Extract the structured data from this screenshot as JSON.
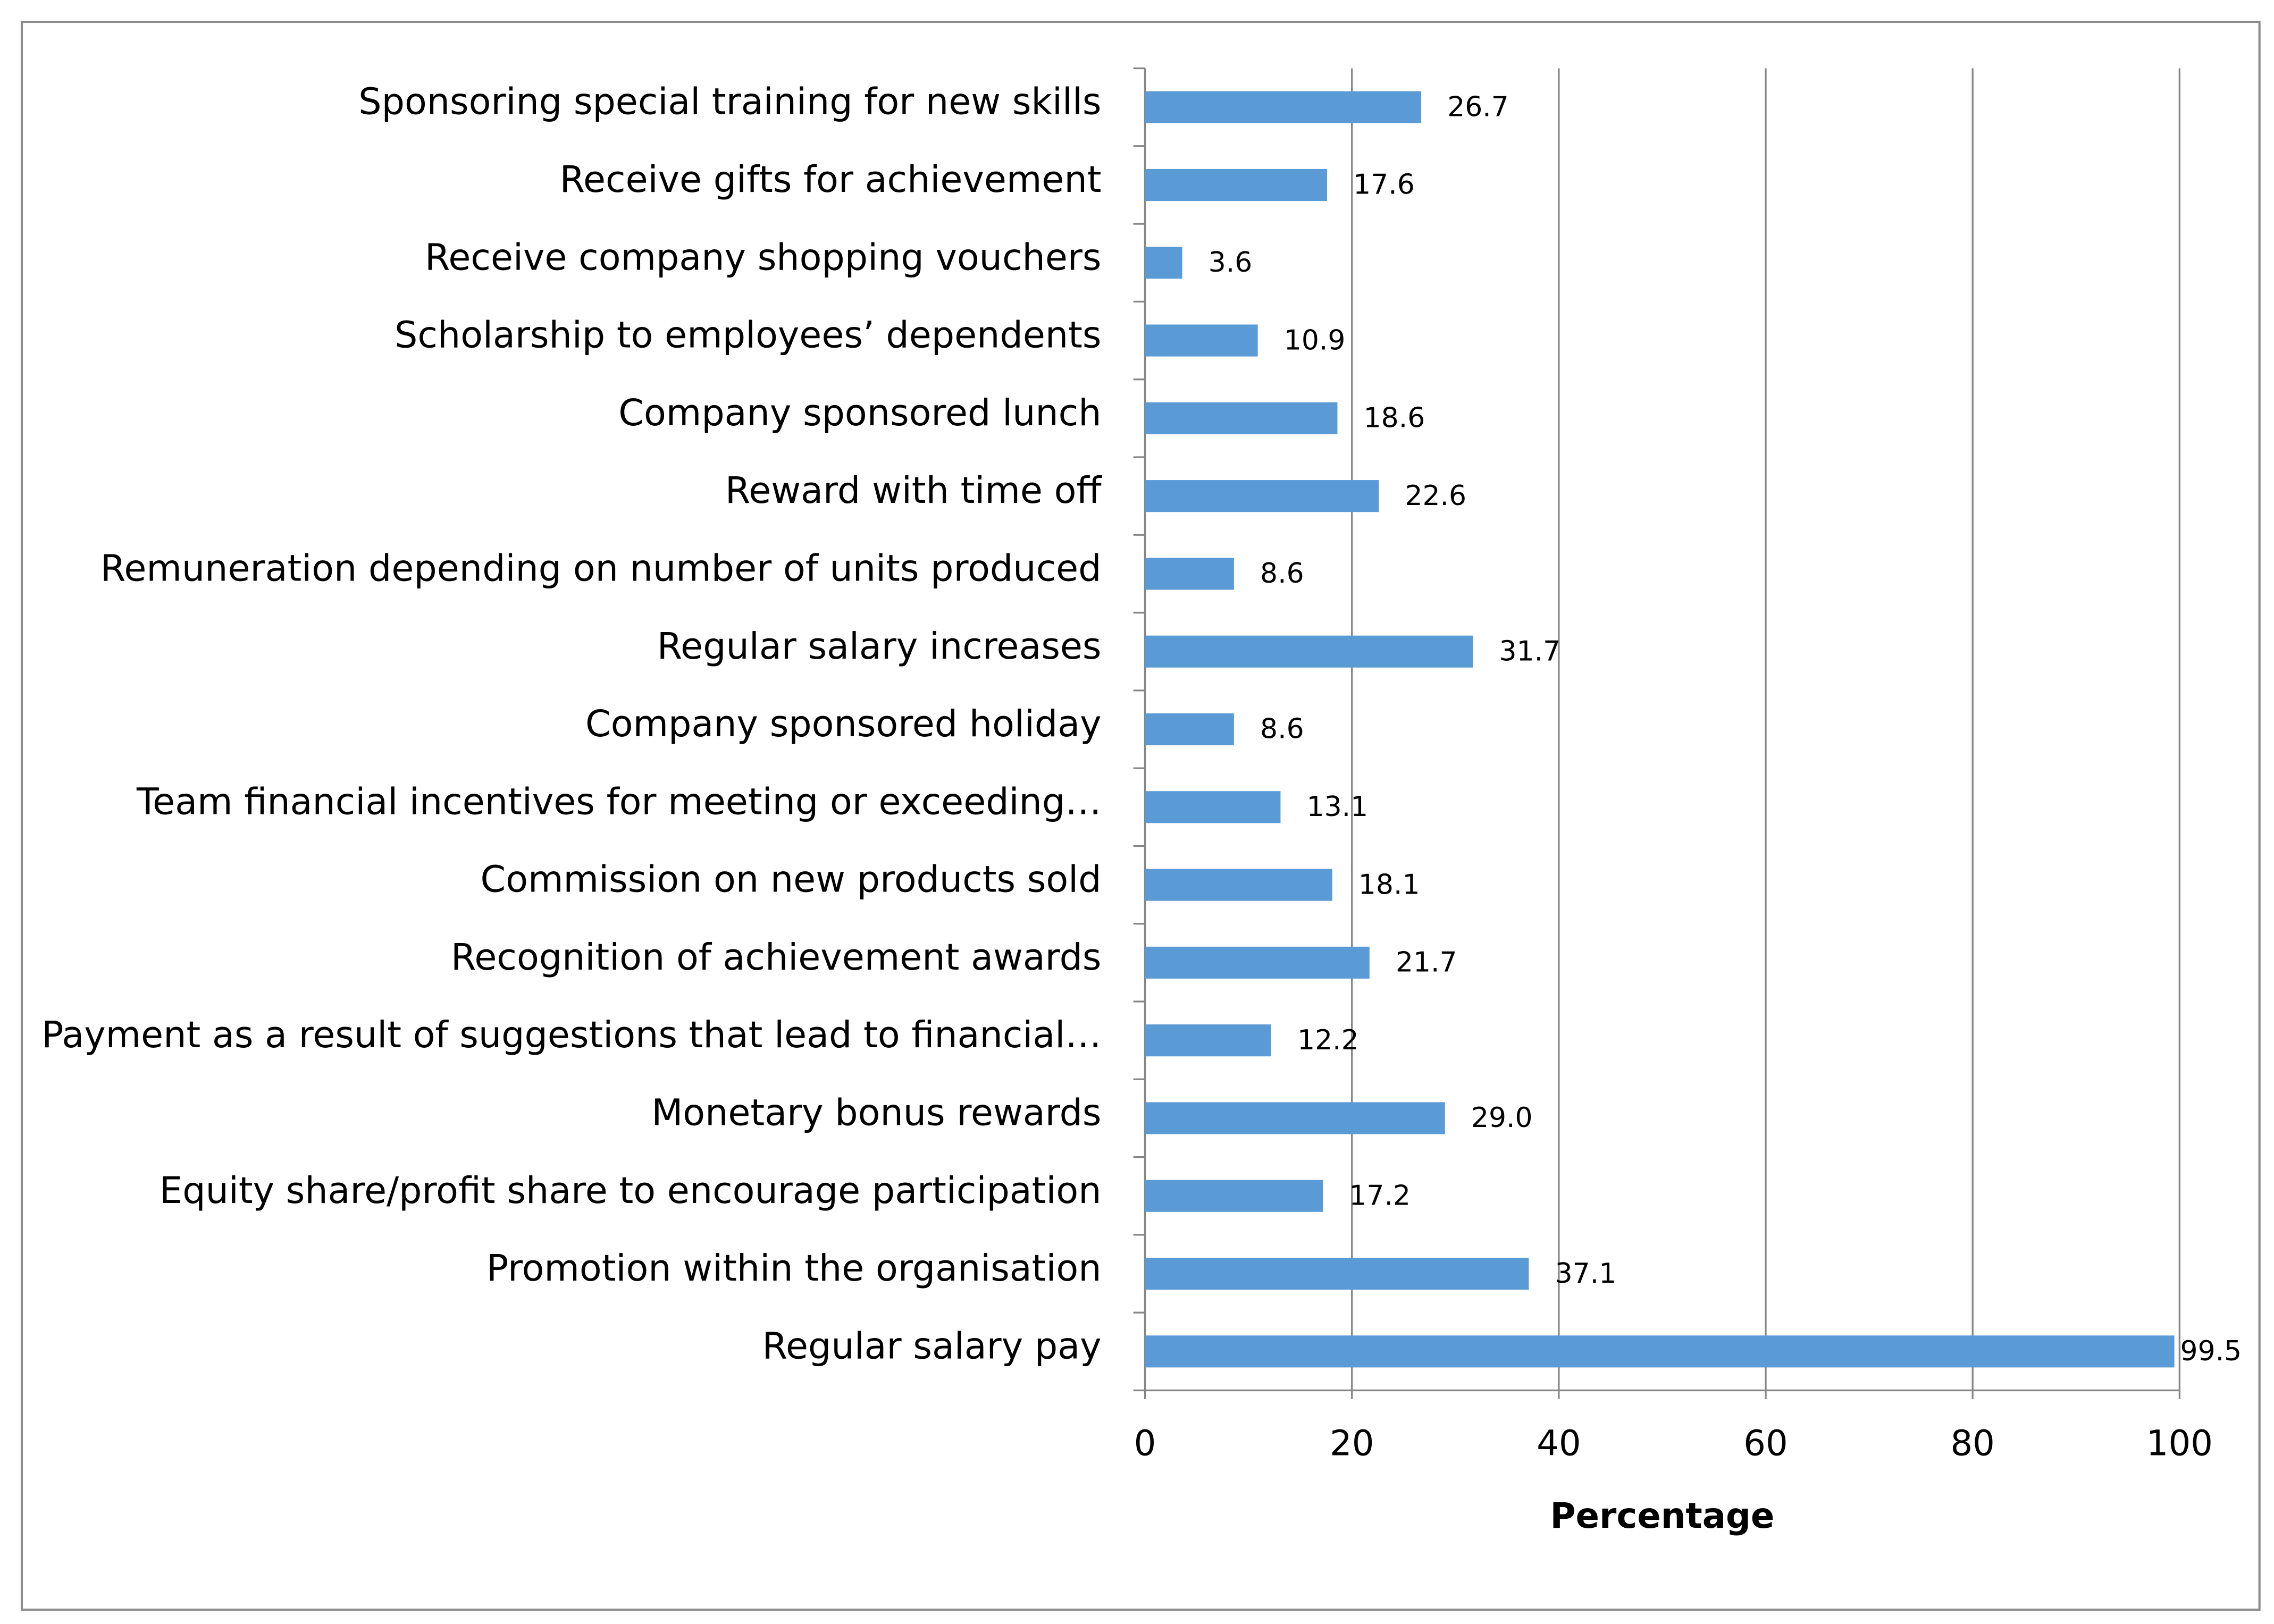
{
  "chart_data": {
    "type": "bar",
    "orientation": "horizontal",
    "categories": [
      "Sponsoring special training for new skills",
      "Receive gifts for achievement",
      "Receive company shopping vouchers",
      "Scholarship to employees’ dependents",
      "Company sponsored lunch",
      "Reward with time off",
      "Remuneration depending on number of units produced",
      "Regular salary increases",
      "Company sponsored holiday",
      "Team financial incentives for meeting or exceeding…",
      "Commission on new products sold",
      "Recognition of achievement awards",
      "Payment as a result of suggestions that lead to financial…",
      "Monetary bonus rewards",
      "Equity share/profit share to encourage participation",
      "Promotion within the organisation",
      "Regular salary  pay"
    ],
    "values": [
      26.7,
      17.6,
      3.6,
      10.9,
      18.6,
      22.6,
      8.6,
      31.7,
      8.6,
      13.1,
      18.1,
      21.7,
      12.2,
      29.0,
      17.2,
      37.1,
      99.5
    ],
    "value_labels": [
      "26.7",
      "17.6",
      "3.6",
      "10.9",
      "18.6",
      "22.6",
      "8.6",
      "31.7",
      "8.6",
      "13.1",
      "18.1",
      "21.7",
      "12.2",
      "29.0",
      "17.2",
      "37.1",
      "99.5"
    ],
    "color": "#5b9bd5",
    "xlabel": "Percentage",
    "xlim": [
      0,
      100
    ],
    "xticks": [
      0,
      20,
      40,
      60,
      80,
      100
    ],
    "grid": true
  }
}
